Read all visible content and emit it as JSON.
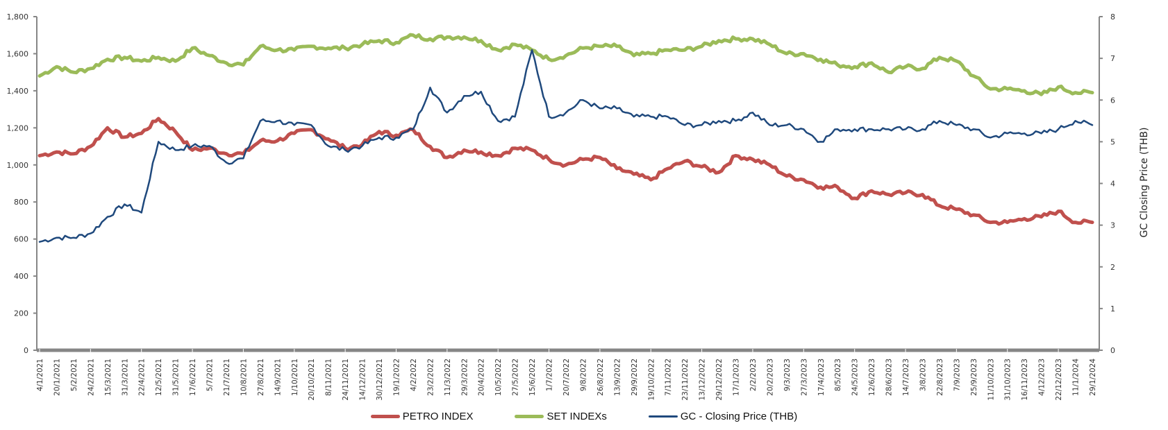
{
  "chart_data": {
    "type": "line",
    "title": "",
    "xlabel": "",
    "ylabel": "",
    "y2label": "GC Closing Price (THB)",
    "ylim": [
      0,
      1800
    ],
    "y2lim": [
      0,
      8
    ],
    "yticks": [
      "0",
      "200",
      "400",
      "600",
      "800",
      "1,000",
      "1,200",
      "1,400",
      "1,600",
      "1,800"
    ],
    "y2ticks": [
      "0",
      "1",
      "2",
      "3",
      "4",
      "5",
      "6",
      "7",
      "8"
    ],
    "grid": false,
    "legend_position": "bottom",
    "categories": [
      "4/1/2021",
      "20/1/2021",
      "5/2/2021",
      "24/2/2021",
      "15/3/2021",
      "31/3/2021",
      "22/4/2021",
      "12/5/2021",
      "31/5/2021",
      "17/6/2021",
      "5/7/2021",
      "21/7/2021",
      "10/8/2021",
      "27/8/2021",
      "14/9/2021",
      "1/10/2021",
      "20/10/2021",
      "8/11/2021",
      "24/11/2021",
      "14/12/2021",
      "30/12/2021",
      "19/1/2022",
      "4/2/2022",
      "23/2/2022",
      "11/3/2022",
      "29/3/2022",
      "20/4/2022",
      "10/5/2022",
      "27/5/2022",
      "15/6/2022",
      "1/7/2022",
      "20/7/2022",
      "9/8/2022",
      "26/8/2022",
      "13/9/2022",
      "29/9/2022",
      "19/10/2022",
      "7/11/2022",
      "23/11/2022",
      "13/12/2022",
      "29/12/2022",
      "17/1/2023",
      "2/2/2023",
      "20/2/2023",
      "9/3/2023",
      "27/3/2023",
      "17/4/2023",
      "8/5/2023",
      "24/5/2023",
      "12/6/2023",
      "28/6/2023",
      "14/7/2023",
      "3/8/2023",
      "22/8/2023",
      "7/9/2023",
      "25/9/2023",
      "11/10/2023",
      "31/10/2023",
      "16/11/2023",
      "4/12/2023",
      "22/12/2023",
      "11/1/2024",
      "29/1/2024"
    ],
    "series": [
      {
        "name": "PETRO INDEX",
        "axis": "left",
        "color": "#C0504D",
        "width": 5,
        "values": [
          1050,
          1070,
          1060,
          1100,
          1200,
          1150,
          1170,
          1250,
          1180,
          1080,
          1090,
          1060,
          1060,
          1130,
          1130,
          1170,
          1190,
          1140,
          1090,
          1110,
          1180,
          1160,
          1190,
          1100,
          1040,
          1080,
          1070,
          1050,
          1090,
          1080,
          1030,
          1000,
          1030,
          1040,
          980,
          950,
          920,
          980,
          1020,
          990,
          960,
          1050,
          1030,
          1000,
          940,
          920,
          880,
          880,
          820,
          860,
          840,
          850,
          840,
          780,
          760,
          730,
          690,
          690,
          710,
          720,
          750,
          690,
          690
        ]
      },
      {
        "name": "SET INDEXs",
        "axis": "left",
        "color": "#9BBB59",
        "width": 5,
        "values": [
          1480,
          1530,
          1500,
          1520,
          1570,
          1580,
          1560,
          1580,
          1560,
          1630,
          1590,
          1550,
          1540,
          1640,
          1620,
          1620,
          1640,
          1630,
          1630,
          1650,
          1670,
          1660,
          1700,
          1680,
          1690,
          1690,
          1670,
          1620,
          1650,
          1620,
          1570,
          1590,
          1630,
          1640,
          1640,
          1590,
          1600,
          1620,
          1620,
          1640,
          1670,
          1680,
          1680,
          1650,
          1600,
          1600,
          1570,
          1540,
          1530,
          1550,
          1500,
          1530,
          1520,
          1580,
          1560,
          1480,
          1410,
          1410,
          1400,
          1380,
          1420,
          1390,
          1390
        ]
      },
      {
        "name": "GC - Closing Price (THB)",
        "axis": "right",
        "color": "#1F497D",
        "width": 2.5,
        "values": [
          2.6,
          2.7,
          2.7,
          2.8,
          3.2,
          3.5,
          3.3,
          5.0,
          4.8,
          4.9,
          4.9,
          4.5,
          4.6,
          5.5,
          5.5,
          5.4,
          5.4,
          4.9,
          4.8,
          4.9,
          5.1,
          5.1,
          5.3,
          6.3,
          5.7,
          6.1,
          6.2,
          5.5,
          5.6,
          7.2,
          5.6,
          5.7,
          6.0,
          5.8,
          5.8,
          5.6,
          5.6,
          5.6,
          5.4,
          5.4,
          5.5,
          5.5,
          5.7,
          5.4,
          5.4,
          5.3,
          5.0,
          5.3,
          5.3,
          5.3,
          5.3,
          5.3,
          5.3,
          5.5,
          5.4,
          5.3,
          5.1,
          5.2,
          5.2,
          5.2,
          5.3,
          5.5,
          5.4
        ]
      }
    ]
  },
  "legend": {
    "items": [
      {
        "label": "PETRO INDEX",
        "color": "#C0504D"
      },
      {
        "label": "SET INDEXs",
        "color": "#9BBB59"
      },
      {
        "label": "GC - Closing Price (THB)",
        "color": "#1F497D"
      }
    ]
  }
}
